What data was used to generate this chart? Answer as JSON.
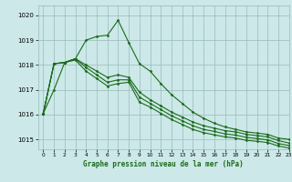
{
  "title": "Graphe pression niveau de la mer (hPa)",
  "bg_color": "#cce8e8",
  "grid_color": "#99bbbb",
  "line_color": "#1a6b1a",
  "xlim": [
    -0.5,
    23
  ],
  "ylim": [
    1014.6,
    1020.4
  ],
  "yticks": [
    1015,
    1016,
    1017,
    1018,
    1019,
    1020
  ],
  "xticks": [
    0,
    1,
    2,
    3,
    4,
    5,
    6,
    7,
    8,
    9,
    10,
    11,
    12,
    13,
    14,
    15,
    16,
    17,
    18,
    19,
    20,
    21,
    22,
    23
  ],
  "series": [
    [
      1016.05,
      1017.0,
      1018.1,
      1018.25,
      1019.0,
      1019.15,
      1019.2,
      1019.8,
      1018.9,
      1018.05,
      1017.75,
      1017.25,
      1016.8,
      1016.45,
      1016.1,
      1015.85,
      1015.65,
      1015.5,
      1015.4,
      1015.3,
      1015.25,
      1015.2,
      1015.05,
      1015.0
    ],
    [
      1016.05,
      1018.05,
      1018.1,
      1018.25,
      1018.0,
      1017.75,
      1017.5,
      1017.6,
      1017.5,
      1016.9,
      1016.6,
      1016.35,
      1016.1,
      1015.9,
      1015.7,
      1015.55,
      1015.45,
      1015.35,
      1015.3,
      1015.2,
      1015.15,
      1015.1,
      1014.95,
      1014.85
    ],
    [
      1016.05,
      1018.05,
      1018.1,
      1018.25,
      1017.9,
      1017.6,
      1017.3,
      1017.4,
      1017.4,
      1016.7,
      1016.45,
      1016.2,
      1015.95,
      1015.75,
      1015.55,
      1015.4,
      1015.32,
      1015.22,
      1015.17,
      1015.08,
      1015.03,
      1014.98,
      1014.83,
      1014.75
    ],
    [
      1016.05,
      1018.05,
      1018.1,
      1018.2,
      1017.75,
      1017.45,
      1017.15,
      1017.25,
      1017.3,
      1016.5,
      1016.3,
      1016.05,
      1015.8,
      1015.6,
      1015.4,
      1015.27,
      1015.18,
      1015.1,
      1015.05,
      1014.96,
      1014.92,
      1014.87,
      1014.73,
      1014.65
    ]
  ]
}
